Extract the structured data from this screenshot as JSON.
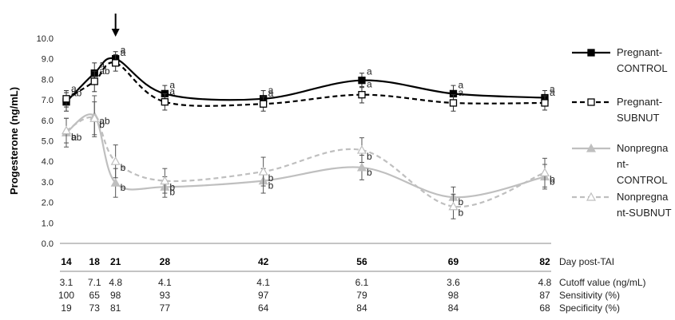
{
  "chart_data": {
    "type": "line",
    "ylabel": "Progesterone (ng/mL)",
    "xlabel": "Day post-TAI",
    "ylim": [
      0,
      10
    ],
    "yticks": [
      "0.0",
      "1.0",
      "2.0",
      "3.0",
      "4.0",
      "5.0",
      "6.0",
      "7.0",
      "8.0",
      "9.0",
      "10.0"
    ],
    "x": [
      14,
      18,
      21,
      28,
      42,
      56,
      69,
      82
    ],
    "arrow_at_day": 21,
    "series": [
      {
        "name": "Pregnant-CONTROL",
        "color": "#000000",
        "dash": "solid",
        "marker": "filled-square",
        "values": [
          6.9,
          8.3,
          9.0,
          7.3,
          7.05,
          7.95,
          7.3,
          7.1
        ],
        "err": [
          0.45,
          0.5,
          0.35,
          0.4,
          0.4,
          0.35,
          0.4,
          0.35
        ],
        "labels": [
          "ab",
          "a",
          "a",
          "a",
          "a",
          "a",
          "a",
          "a"
        ]
      },
      {
        "name": "Pregnant-SUBNUT",
        "color": "#000000",
        "dash": "dashed",
        "marker": "open-square",
        "values": [
          7.05,
          7.9,
          8.8,
          6.9,
          6.8,
          7.25,
          6.85,
          6.85
        ],
        "err": [
          0.4,
          0.5,
          0.4,
          0.4,
          0.35,
          0.4,
          0.4,
          0.35
        ],
        "labels": [
          "a",
          "ab",
          "a",
          "a",
          "a",
          "a",
          "a",
          "a"
        ]
      },
      {
        "name": "Nonpregnant-CONTROL",
        "color": "#bfbfbf",
        "dash": "solid",
        "marker": "filled-triangle",
        "values": [
          5.4,
          6.2,
          2.95,
          2.75,
          3.05,
          3.7,
          2.25,
          3.25
        ],
        "err": [
          0.7,
          1.0,
          0.7,
          0.5,
          0.6,
          0.6,
          0.5,
          0.6
        ],
        "labels": [
          "ab",
          "ab",
          "b",
          "b",
          "b",
          "b",
          "b",
          "b"
        ]
      },
      {
        "name": "Nonpregnant-SUBNUT",
        "color": "#bfbfbf",
        "dash": "dashed",
        "marker": "open-triangle",
        "values": [
          5.5,
          6.1,
          4.0,
          3.05,
          3.5,
          4.55,
          1.8,
          3.45
        ],
        "err": [
          0.6,
          0.8,
          0.8,
          0.6,
          0.7,
          0.6,
          0.6,
          0.7
        ],
        "labels": [
          "b",
          "b",
          "b",
          "b",
          "b",
          "b",
          "b",
          "b"
        ]
      }
    ],
    "legend": {
      "position": "right",
      "entries": [
        [
          "Pregnant-",
          "CONTROL"
        ],
        [
          "Pregnant-",
          "SUBNUT"
        ],
        [
          "Nonpregna",
          "nt-",
          "CONTROL"
        ],
        [
          "Nonpregna",
          "nt-SUBNUT"
        ]
      ]
    },
    "table": {
      "rows": [
        {
          "label": "Cutoff value (ng/mL)",
          "values": [
            "3.1",
            "7.1",
            "4.8",
            "4.1",
            "4.1",
            "6.1",
            "3.6",
            "4.8"
          ]
        },
        {
          "label": "Sensitivity (%)",
          "values": [
            "100",
            "65",
            "98",
            "93",
            "97",
            "79",
            "98",
            "87"
          ]
        },
        {
          "label": "Specificity (%)",
          "values": [
            "19",
            "73",
            "81",
            "77",
            "64",
            "84",
            "84",
            "68"
          ]
        }
      ]
    }
  }
}
